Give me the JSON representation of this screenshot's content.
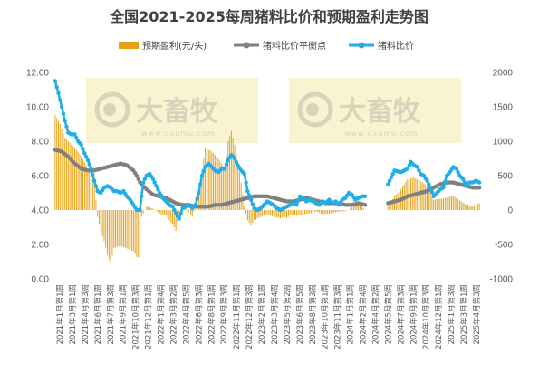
{
  "chart_data": {
    "type": "bar+line",
    "title": "全国2021-2025每周猪料比价和预期盈利走势图",
    "left_axis": {
      "min": 0,
      "max": 12,
      "step": 2,
      "ticks": [
        "0.00",
        "2.00",
        "4.00",
        "6.00",
        "8.00",
        "10.00",
        "12.00"
      ]
    },
    "right_axis": {
      "min": -1000,
      "max": 2000,
      "step": 500,
      "ticks": [
        "-1000",
        "-500",
        "0",
        "500",
        "1000",
        "1500",
        "2000"
      ]
    },
    "x_ticks": [
      "2021年1月第1周",
      "2021年3月第1周",
      "2021年4月第3周",
      "2021年6月第1周",
      "2021年7月第3周",
      "2021年9月第1周",
      "2021年10月第3周",
      "2021年12月第1周",
      "2022年1月第4周",
      "2022年3月第2周",
      "2022年4月第5周",
      "2022年6月第3周",
      "2022年8月第1周",
      "2022年9月第3周",
      "2022年11月第1周",
      "2022年12月第3周",
      "2023年2月第1周",
      "2023年3月第4周",
      "2023年5月第2周",
      "2023年6月第5周",
      "2023年8月第3周",
      "2023年10月第1周",
      "2023年11月第3周",
      "2024年1月第1周",
      "2024年2月第4周",
      "2024年4月第2周",
      "2024年5月第5周",
      "2024年7月第3周",
      "2024年9月第1周",
      "2024年10月第3周",
      "2024年12月第1周",
      "2025年1月第3周",
      "2025年3月第1周",
      "2025年4月第3周"
    ],
    "legend": [
      {
        "name": "预期盈利(元/头)",
        "color": "#e6a117",
        "marker": "bar"
      },
      {
        "name": "猪料比价平衡点",
        "color": "#808080",
        "marker": "line-dot"
      },
      {
        "name": "猪料比价",
        "color": "#21aee8",
        "marker": "line-dot"
      }
    ],
    "series": {
      "expected_profit": {
        "axis": "right",
        "keypoints": [
          [
            0,
            1380
          ],
          [
            3,
            1250
          ],
          [
            6,
            1050
          ],
          [
            10,
            950
          ],
          [
            14,
            850
          ],
          [
            18,
            700
          ],
          [
            20,
            600
          ],
          [
            24,
            400
          ],
          [
            26,
            -100
          ],
          [
            28,
            -300
          ],
          [
            30,
            -450
          ],
          [
            32,
            -650
          ],
          [
            34,
            -780
          ],
          [
            36,
            -550
          ],
          [
            40,
            -520
          ],
          [
            44,
            -560
          ],
          [
            48,
            -600
          ],
          [
            50,
            -680
          ],
          [
            52,
            -700
          ],
          [
            53,
            -100
          ],
          [
            56,
            50
          ],
          [
            60,
            20
          ],
          [
            64,
            -50
          ],
          [
            68,
            -80
          ],
          [
            70,
            -150
          ],
          [
            72,
            -200
          ],
          [
            74,
            -300
          ],
          [
            76,
            -50
          ],
          [
            80,
            50
          ],
          [
            84,
            -100
          ],
          [
            86,
            50
          ],
          [
            88,
            250
          ],
          [
            90,
            600
          ],
          [
            92,
            900
          ],
          [
            96,
            850
          ],
          [
            100,
            750
          ],
          [
            104,
            600
          ],
          [
            106,
            1000
          ],
          [
            108,
            1150
          ],
          [
            110,
            950
          ],
          [
            112,
            700
          ],
          [
            114,
            400
          ],
          [
            116,
            50
          ],
          [
            118,
            -150
          ],
          [
            120,
            -220
          ],
          [
            122,
            -150
          ],
          [
            126,
            -100
          ],
          [
            130,
            -50
          ],
          [
            134,
            -100
          ],
          [
            138,
            -120
          ],
          [
            140,
            -100
          ],
          [
            142,
            -120
          ],
          [
            144,
            -80
          ],
          [
            148,
            -80
          ],
          [
            152,
            -60
          ],
          [
            156,
            -50
          ],
          [
            160,
            -20
          ],
          [
            164,
            -60
          ],
          [
            168,
            -50
          ],
          [
            172,
            -30
          ],
          [
            176,
            -20
          ],
          [
            180,
            0
          ],
          [
            184,
            80
          ],
          [
            188,
            60
          ],
          [
            190,
            0
          ],
          [
            192,
            -20
          ],
          [
            200,
            -30
          ],
          [
            204,
            50
          ],
          [
            208,
            200
          ],
          [
            212,
            300
          ],
          [
            216,
            450
          ],
          [
            220,
            470
          ],
          [
            224,
            420
          ],
          [
            228,
            350
          ],
          [
            230,
            250
          ],
          [
            232,
            150
          ],
          [
            236,
            160
          ],
          [
            240,
            180
          ],
          [
            244,
            210
          ],
          [
            248,
            140
          ],
          [
            252,
            80
          ],
          [
            256,
            60
          ],
          [
            258,
            80
          ],
          [
            260,
            100
          ]
        ]
      },
      "balance_point": {
        "axis": "left",
        "keypoints": [
          [
            0,
            7.5
          ],
          [
            4,
            7.4
          ],
          [
            8,
            7.1
          ],
          [
            12,
            6.7
          ],
          [
            16,
            6.4
          ],
          [
            20,
            6.3
          ],
          [
            24,
            6.3
          ],
          [
            28,
            6.4
          ],
          [
            32,
            6.5
          ],
          [
            36,
            6.6
          ],
          [
            40,
            6.7
          ],
          [
            44,
            6.6
          ],
          [
            48,
            6.3
          ],
          [
            50,
            6.0
          ],
          [
            52,
            5.6
          ],
          [
            56,
            5.2
          ],
          [
            60,
            4.9
          ],
          [
            64,
            4.8
          ],
          [
            68,
            4.7
          ],
          [
            70,
            4.6
          ],
          [
            74,
            4.4
          ],
          [
            78,
            4.3
          ],
          [
            82,
            4.3
          ],
          [
            86,
            4.2
          ],
          [
            90,
            4.2
          ],
          [
            94,
            4.2
          ],
          [
            98,
            4.3
          ],
          [
            102,
            4.3
          ],
          [
            106,
            4.4
          ],
          [
            110,
            4.5
          ],
          [
            114,
            4.6
          ],
          [
            118,
            4.7
          ],
          [
            122,
            4.8
          ],
          [
            126,
            4.8
          ],
          [
            130,
            4.8
          ],
          [
            134,
            4.7
          ],
          [
            138,
            4.6
          ],
          [
            142,
            4.5
          ],
          [
            146,
            4.5
          ],
          [
            150,
            4.6
          ],
          [
            154,
            4.7
          ],
          [
            158,
            4.6
          ],
          [
            162,
            4.5
          ],
          [
            166,
            4.4
          ],
          [
            170,
            4.4
          ],
          [
            174,
            4.4
          ],
          [
            178,
            4.3
          ],
          [
            182,
            4.3
          ],
          [
            186,
            4.4
          ],
          [
            190,
            4.3
          ],
          [
            194,
            4.3
          ],
          [
            200,
            4.3
          ],
          [
            204,
            4.4
          ],
          [
            208,
            4.5
          ],
          [
            212,
            4.6
          ],
          [
            216,
            4.8
          ],
          [
            220,
            4.9
          ],
          [
            224,
            5.0
          ],
          [
            228,
            5.1
          ],
          [
            232,
            5.3
          ],
          [
            236,
            5.5
          ],
          [
            240,
            5.6
          ],
          [
            244,
            5.6
          ],
          [
            248,
            5.5
          ],
          [
            252,
            5.4
          ],
          [
            256,
            5.3
          ],
          [
            260,
            5.3
          ]
        ]
      },
      "ratio": {
        "axis": "left",
        "keypoints": [
          [
            0,
            11.5
          ],
          [
            2,
            10.8
          ],
          [
            4,
            10.0
          ],
          [
            6,
            9.2
          ],
          [
            8,
            8.5
          ],
          [
            10,
            8.4
          ],
          [
            12,
            8.4
          ],
          [
            14,
            8.0
          ],
          [
            16,
            7.8
          ],
          [
            18,
            7.3
          ],
          [
            20,
            6.9
          ],
          [
            22,
            6.4
          ],
          [
            24,
            5.7
          ],
          [
            26,
            5.1
          ],
          [
            28,
            5.0
          ],
          [
            30,
            5.3
          ],
          [
            32,
            5.4
          ],
          [
            34,
            5.3
          ],
          [
            36,
            5.1
          ],
          [
            38,
            5.1
          ],
          [
            40,
            5.0
          ],
          [
            42,
            5.1
          ],
          [
            44,
            4.8
          ],
          [
            46,
            4.6
          ],
          [
            48,
            4.3
          ],
          [
            50,
            4.0
          ],
          [
            52,
            4.0
          ],
          [
            54,
            5.6
          ],
          [
            56,
            6.0
          ],
          [
            58,
            6.1
          ],
          [
            60,
            5.8
          ],
          [
            62,
            5.4
          ],
          [
            64,
            5.0
          ],
          [
            66,
            4.7
          ],
          [
            68,
            4.5
          ],
          [
            70,
            4.3
          ],
          [
            72,
            4.2
          ],
          [
            74,
            3.8
          ],
          [
            76,
            3.5
          ],
          [
            78,
            4.1
          ],
          [
            80,
            4.2
          ],
          [
            82,
            4.3
          ],
          [
            84,
            4.1
          ],
          [
            86,
            4.3
          ],
          [
            88,
            5.0
          ],
          [
            90,
            6.0
          ],
          [
            92,
            6.5
          ],
          [
            94,
            6.7
          ],
          [
            96,
            6.5
          ],
          [
            98,
            6.3
          ],
          [
            100,
            6.2
          ],
          [
            102,
            6.4
          ],
          [
            104,
            6.4
          ],
          [
            106,
            6.9
          ],
          [
            108,
            7.2
          ],
          [
            110,
            7.0
          ],
          [
            112,
            6.6
          ],
          [
            114,
            6.3
          ],
          [
            116,
            6.1
          ],
          [
            118,
            5.1
          ],
          [
            120,
            4.6
          ],
          [
            122,
            4.1
          ],
          [
            124,
            4.0
          ],
          [
            126,
            4.1
          ],
          [
            128,
            4.3
          ],
          [
            130,
            4.5
          ],
          [
            132,
            4.4
          ],
          [
            134,
            4.3
          ],
          [
            136,
            4.1
          ],
          [
            138,
            4.0
          ],
          [
            140,
            4.1
          ],
          [
            142,
            4.2
          ],
          [
            144,
            4.3
          ],
          [
            146,
            4.4
          ],
          [
            148,
            4.3
          ],
          [
            150,
            4.8
          ],
          [
            152,
            4.7
          ],
          [
            154,
            4.5
          ],
          [
            156,
            4.6
          ],
          [
            158,
            4.5
          ],
          [
            160,
            4.4
          ],
          [
            162,
            4.3
          ],
          [
            164,
            4.5
          ],
          [
            166,
            4.4
          ],
          [
            168,
            4.6
          ],
          [
            170,
            4.4
          ],
          [
            172,
            4.5
          ],
          [
            174,
            4.3
          ],
          [
            176,
            4.6
          ],
          [
            178,
            4.7
          ],
          [
            180,
            5.0
          ],
          [
            182,
            4.9
          ],
          [
            184,
            4.6
          ],
          [
            186,
            4.7
          ],
          [
            188,
            4.8
          ],
          [
            190,
            4.8
          ],
          [
            200,
            4.8
          ],
          [
            204,
            5.5
          ],
          [
            208,
            6.3
          ],
          [
            212,
            6.2
          ],
          [
            216,
            6.4
          ],
          [
            218,
            6.8
          ],
          [
            220,
            6.6
          ],
          [
            222,
            6.5
          ],
          [
            224,
            6.1
          ],
          [
            226,
            6.0
          ],
          [
            228,
            5.7
          ],
          [
            230,
            5.3
          ],
          [
            232,
            4.8
          ],
          [
            234,
            5.0
          ],
          [
            236,
            5.2
          ],
          [
            238,
            5.3
          ],
          [
            240,
            6.0
          ],
          [
            242,
            6.2
          ],
          [
            244,
            6.5
          ],
          [
            246,
            6.4
          ],
          [
            248,
            6.0
          ],
          [
            250,
            5.8
          ],
          [
            252,
            5.4
          ],
          [
            254,
            5.6
          ],
          [
            256,
            5.6
          ],
          [
            258,
            5.7
          ],
          [
            260,
            5.6
          ]
        ]
      }
    },
    "gap": [
      191,
      203
    ],
    "n_weeks": 261,
    "watermark": {
      "brand": "大畜牧",
      "url": "www.dxumu.com"
    }
  }
}
